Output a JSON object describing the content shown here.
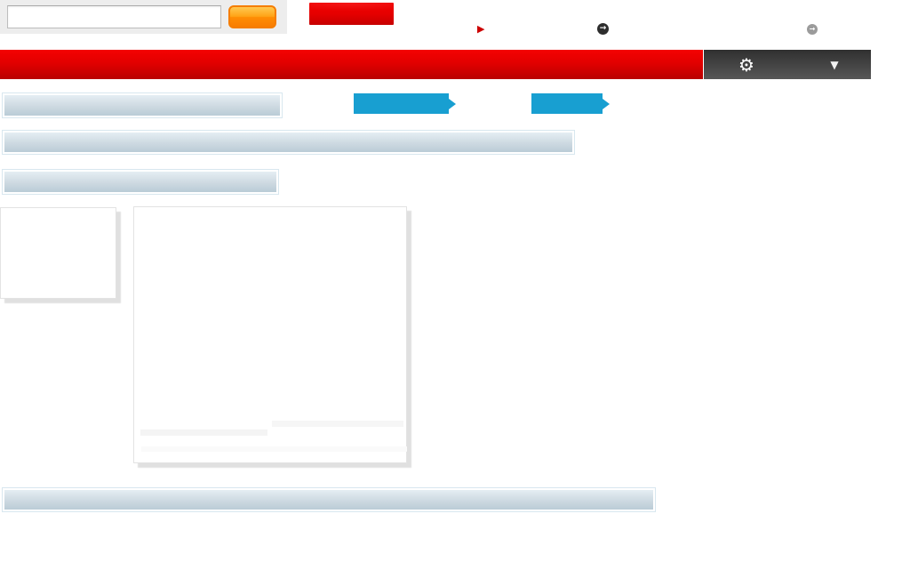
{
  "topbar": {
    "search": {
      "value": "",
      "placeholder": "",
      "submit_label": ""
    },
    "action_button_label": "",
    "icons": {
      "play": {
        "glyph": "▶",
        "color": "#cc0000"
      },
      "arrow_dark": {
        "glyph": "→",
        "bg": "#2d2d2d",
        "fg": "#ffffff"
      },
      "arrow_light": {
        "glyph": "→",
        "bg": "#9b9b9b",
        "fg": "#ffffff"
      }
    }
  },
  "nav_banner": {
    "label": "",
    "color_top": "#f40202",
    "color_bottom": "#b80000"
  },
  "toolbar": {
    "gear_icon": "⚙",
    "caret_icon": "▼",
    "bg_top": "#303030",
    "bg_bottom": "#575757"
  },
  "ribbons": [
    {
      "label": "",
      "color": "#189fd1"
    },
    {
      "label": "",
      "color": "#189fd1"
    }
  ],
  "placeholders": {
    "heading_bar_gradient_top": "#e9f1f6",
    "heading_bar_gradient_bottom": "#b6c9d4",
    "card_background": "#ffffff",
    "card_shadow": "#dcdcdc"
  },
  "accent_colors": {
    "search_button_orange": "#ff9012",
    "search_button_border": "#f57d00",
    "banner_red": "#d40000",
    "ribbon_blue": "#189fd1",
    "search_area_gray": "#ededed"
  }
}
